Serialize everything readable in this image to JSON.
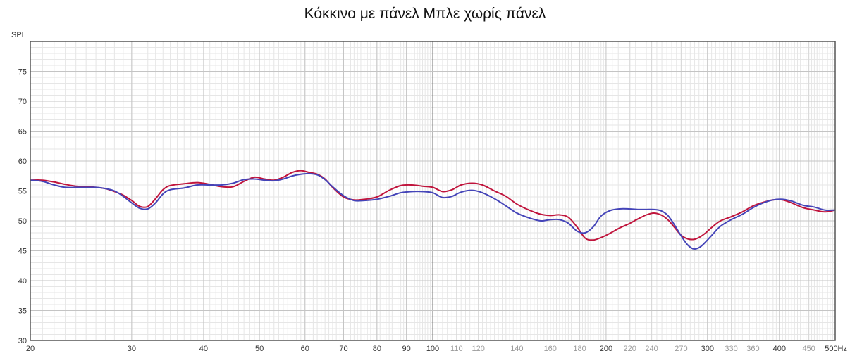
{
  "chart_data": {
    "type": "line",
    "title": "Κόκκινο με πάνελ Μπλε χωρίς πάνελ",
    "ylabel": "SPL",
    "xunit": "Hz",
    "xscale": "log",
    "xlim": [
      20,
      500
    ],
    "ylim": [
      30,
      80
    ],
    "grid": true,
    "y_ticks": [
      30,
      35,
      40,
      45,
      50,
      55,
      60,
      65,
      70,
      75
    ],
    "x_ticks": [
      {
        "value": 20,
        "label": "20",
        "major": true
      },
      {
        "value": 30,
        "label": "30",
        "major": true
      },
      {
        "value": 40,
        "label": "40",
        "major": true
      },
      {
        "value": 50,
        "label": "50",
        "major": true
      },
      {
        "value": 60,
        "label": "60",
        "major": true
      },
      {
        "value": 70,
        "label": "70",
        "major": true
      },
      {
        "value": 80,
        "label": "80",
        "major": true
      },
      {
        "value": 90,
        "label": "90",
        "major": true
      },
      {
        "value": 100,
        "label": "100",
        "major": true
      },
      {
        "value": 110,
        "label": "110",
        "major": false
      },
      {
        "value": 120,
        "label": "120",
        "major": false
      },
      {
        "value": 140,
        "label": "140",
        "major": false
      },
      {
        "value": 160,
        "label": "160",
        "major": false
      },
      {
        "value": 180,
        "label": "180",
        "major": false
      },
      {
        "value": 200,
        "label": "200",
        "major": true
      },
      {
        "value": 220,
        "label": "220",
        "major": false
      },
      {
        "value": 240,
        "label": "240",
        "major": false
      },
      {
        "value": 270,
        "label": "270",
        "major": false
      },
      {
        "value": 300,
        "label": "300",
        "major": true
      },
      {
        "value": 330,
        "label": "330",
        "major": false
      },
      {
        "value": 360,
        "label": "360",
        "major": false
      },
      {
        "value": 400,
        "label": "400",
        "major": true
      },
      {
        "value": 450,
        "label": "450",
        "major": false
      },
      {
        "value": 500,
        "label": "500Hz",
        "major": true
      }
    ],
    "series": [
      {
        "color": "#c0143c",
        "points": [
          [
            20,
            56.8
          ],
          [
            21,
            56.8
          ],
          [
            22,
            56.5
          ],
          [
            23,
            56.1
          ],
          [
            24,
            55.8
          ],
          [
            25,
            55.7
          ],
          [
            26,
            55.6
          ],
          [
            27,
            55.4
          ],
          [
            28,
            54.9
          ],
          [
            29,
            54.3
          ],
          [
            30,
            53.4
          ],
          [
            31,
            52.4
          ],
          [
            32,
            52.4
          ],
          [
            33,
            53.7
          ],
          [
            34,
            55.2
          ],
          [
            35,
            55.9
          ],
          [
            37,
            56.2
          ],
          [
            39,
            56.4
          ],
          [
            41,
            56.1
          ],
          [
            43,
            55.7
          ],
          [
            45,
            55.7
          ],
          [
            47,
            56.6
          ],
          [
            49,
            57.3
          ],
          [
            51,
            57.0
          ],
          [
            53,
            56.8
          ],
          [
            55,
            57.3
          ],
          [
            57,
            58.1
          ],
          [
            59,
            58.4
          ],
          [
            61,
            58.1
          ],
          [
            63,
            57.8
          ],
          [
            65,
            57.0
          ],
          [
            67,
            55.6
          ],
          [
            70,
            54.0
          ],
          [
            73,
            53.5
          ],
          [
            76,
            53.6
          ],
          [
            80,
            54.0
          ],
          [
            84,
            55.1
          ],
          [
            88,
            55.9
          ],
          [
            92,
            56.0
          ],
          [
            96,
            55.8
          ],
          [
            100,
            55.6
          ],
          [
            104,
            54.9
          ],
          [
            108,
            55.2
          ],
          [
            112,
            56.0
          ],
          [
            117,
            56.3
          ],
          [
            122,
            56.0
          ],
          [
            128,
            55.0
          ],
          [
            134,
            54.1
          ],
          [
            140,
            52.8
          ],
          [
            147,
            51.8
          ],
          [
            154,
            51.1
          ],
          [
            160,
            50.9
          ],
          [
            166,
            51.0
          ],
          [
            172,
            50.6
          ],
          [
            178,
            49.0
          ],
          [
            184,
            47.1
          ],
          [
            190,
            46.8
          ],
          [
            196,
            47.2
          ],
          [
            203,
            47.9
          ],
          [
            211,
            48.8
          ],
          [
            219,
            49.5
          ],
          [
            227,
            50.3
          ],
          [
            235,
            51.0
          ],
          [
            242,
            51.3
          ],
          [
            249,
            51.0
          ],
          [
            256,
            50.2
          ],
          [
            263,
            48.9
          ],
          [
            270,
            47.6
          ],
          [
            277,
            47.0
          ],
          [
            284,
            46.9
          ],
          [
            291,
            47.3
          ],
          [
            298,
            48.0
          ],
          [
            306,
            49.0
          ],
          [
            316,
            50.0
          ],
          [
            330,
            50.7
          ],
          [
            345,
            51.5
          ],
          [
            360,
            52.5
          ],
          [
            375,
            53.1
          ],
          [
            390,
            53.5
          ],
          [
            405,
            53.5
          ],
          [
            420,
            53.0
          ],
          [
            440,
            52.2
          ],
          [
            460,
            51.8
          ],
          [
            480,
            51.5
          ],
          [
            500,
            51.8
          ]
        ]
      },
      {
        "color": "#4444b8",
        "points": [
          [
            20,
            56.8
          ],
          [
            21,
            56.6
          ],
          [
            22,
            56.0
          ],
          [
            23,
            55.6
          ],
          [
            24,
            55.6
          ],
          [
            25,
            55.6
          ],
          [
            26,
            55.6
          ],
          [
            27,
            55.4
          ],
          [
            28,
            55.0
          ],
          [
            29,
            54.1
          ],
          [
            30,
            53.0
          ],
          [
            31,
            52.1
          ],
          [
            32,
            52.0
          ],
          [
            33,
            53.0
          ],
          [
            34,
            54.5
          ],
          [
            35,
            55.2
          ],
          [
            37,
            55.5
          ],
          [
            39,
            56.0
          ],
          [
            41,
            56.0
          ],
          [
            43,
            56.0
          ],
          [
            45,
            56.3
          ],
          [
            47,
            56.9
          ],
          [
            49,
            57.0
          ],
          [
            51,
            56.8
          ],
          [
            53,
            56.7
          ],
          [
            55,
            57.0
          ],
          [
            57,
            57.5
          ],
          [
            59,
            57.8
          ],
          [
            61,
            57.9
          ],
          [
            63,
            57.7
          ],
          [
            65,
            56.9
          ],
          [
            67,
            55.7
          ],
          [
            70,
            54.2
          ],
          [
            73,
            53.4
          ],
          [
            76,
            53.4
          ],
          [
            80,
            53.6
          ],
          [
            84,
            54.1
          ],
          [
            88,
            54.7
          ],
          [
            92,
            54.9
          ],
          [
            96,
            54.9
          ],
          [
            100,
            54.7
          ],
          [
            104,
            53.9
          ],
          [
            108,
            54.1
          ],
          [
            112,
            54.8
          ],
          [
            117,
            55.1
          ],
          [
            122,
            54.7
          ],
          [
            128,
            53.7
          ],
          [
            134,
            52.5
          ],
          [
            140,
            51.3
          ],
          [
            147,
            50.5
          ],
          [
            154,
            50.0
          ],
          [
            160,
            50.2
          ],
          [
            166,
            50.2
          ],
          [
            172,
            49.6
          ],
          [
            178,
            48.3
          ],
          [
            184,
            48.0
          ],
          [
            190,
            49.0
          ],
          [
            196,
            50.8
          ],
          [
            203,
            51.7
          ],
          [
            211,
            52.0
          ],
          [
            219,
            52.0
          ],
          [
            227,
            51.9
          ],
          [
            235,
            51.9
          ],
          [
            242,
            51.9
          ],
          [
            249,
            51.7
          ],
          [
            256,
            50.9
          ],
          [
            263,
            49.3
          ],
          [
            270,
            47.5
          ],
          [
            277,
            46.0
          ],
          [
            284,
            45.3
          ],
          [
            291,
            45.6
          ],
          [
            298,
            46.5
          ],
          [
            306,
            47.7
          ],
          [
            316,
            49.1
          ],
          [
            330,
            50.2
          ],
          [
            345,
            51.1
          ],
          [
            360,
            52.2
          ],
          [
            375,
            53.0
          ],
          [
            390,
            53.5
          ],
          [
            405,
            53.6
          ],
          [
            420,
            53.3
          ],
          [
            440,
            52.6
          ],
          [
            460,
            52.3
          ],
          [
            480,
            51.8
          ],
          [
            500,
            51.8
          ]
        ]
      }
    ]
  }
}
